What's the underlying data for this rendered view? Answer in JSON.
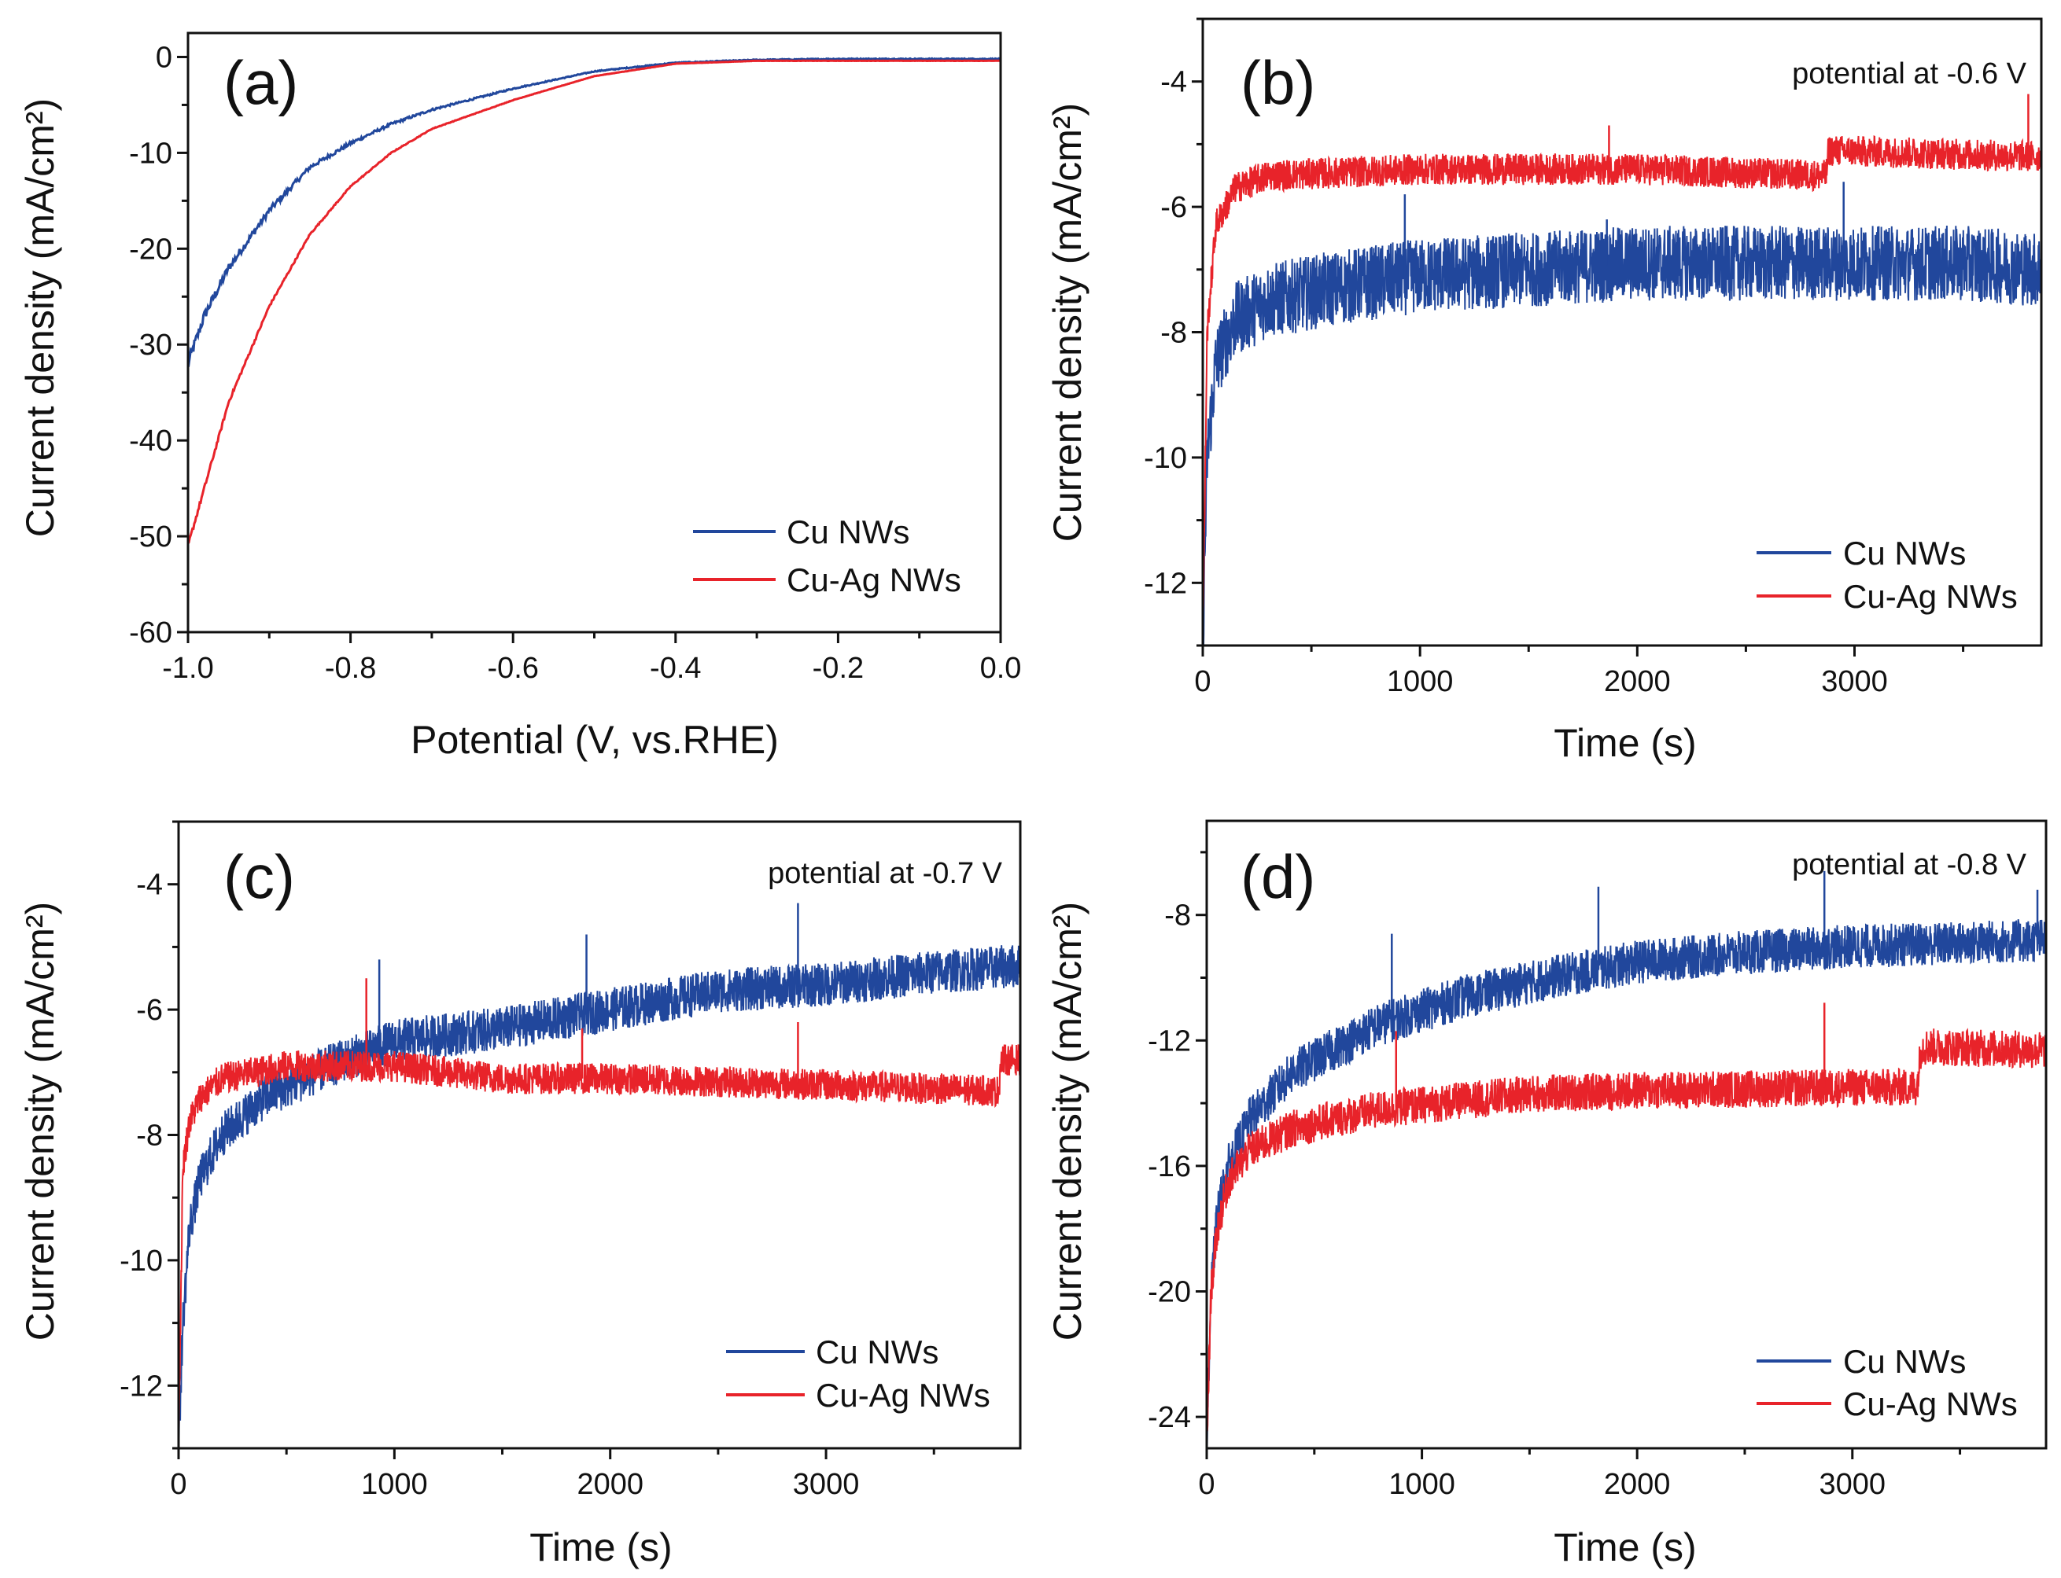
{
  "colors": {
    "cu": "#21479c",
    "cuag": "#e8232a",
    "axis": "#111111"
  },
  "legend": [
    "Cu NWs",
    "Cu-Ag NWs"
  ],
  "chart_data": [
    {
      "panel": "(a)",
      "type": "line",
      "xlabel": "Potential (V, vs.RHE)",
      "ylabel": "Current density (mA/cm²)",
      "annotation": "",
      "xlim": [
        -1.0,
        0.0
      ],
      "ylim": [
        -60,
        2.5
      ],
      "xticks": [
        -1.0,
        -0.8,
        -0.6,
        -0.4,
        -0.2,
        0.0
      ],
      "xtick_labels": [
        "-1.0",
        "-0.8",
        "-0.6",
        "-0.4",
        "-0.2",
        "0.0"
      ],
      "xminor": 0.1,
      "yticks": [
        0,
        -10,
        -20,
        -30,
        -40,
        -50,
        -60
      ],
      "ytick_labels": [
        "0",
        "-10",
        "-20",
        "-30",
        "-40",
        "-50",
        "-60"
      ],
      "yminor": 5,
      "series": [
        {
          "name": "Cu NWs",
          "color_key": "cu",
          "noise": 0.5,
          "x": [
            -1.0,
            -0.98,
            -0.95,
            -0.9,
            -0.85,
            -0.8,
            -0.75,
            -0.7,
            -0.6,
            -0.5,
            -0.4,
            -0.3,
            -0.2,
            -0.1,
            0.0
          ],
          "y": [
            -32,
            -27,
            -22,
            -16,
            -11.5,
            -9,
            -7,
            -5.5,
            -3.3,
            -1.5,
            -0.6,
            -0.3,
            -0.2,
            -0.2,
            -0.2
          ],
          "spikes": []
        },
        {
          "name": "Cu-Ag NWs",
          "color_key": "cuag",
          "noise": 0.12,
          "x": [
            -1.0,
            -0.98,
            -0.95,
            -0.9,
            -0.85,
            -0.8,
            -0.75,
            -0.7,
            -0.6,
            -0.5,
            -0.4,
            -0.3,
            -0.2,
            -0.1,
            0.0
          ],
          "y": [
            -51,
            -45,
            -36,
            -26,
            -18.5,
            -13.5,
            -10,
            -7.5,
            -4.5,
            -2,
            -0.7,
            -0.4,
            -0.4,
            -0.4,
            -0.4
          ],
          "spikes": []
        }
      ]
    },
    {
      "panel": "(b)",
      "type": "line",
      "xlabel": "Time (s)",
      "ylabel": "Current density (mA/cm²)",
      "annotation": "potential at -0.6 V",
      "xlim": [
        0,
        3860
      ],
      "ylim": [
        -13,
        -3
      ],
      "xticks": [
        0,
        1000,
        2000,
        3000
      ],
      "xtick_labels": [
        "0",
        "1000",
        "2000",
        "3000"
      ],
      "xminor": 500,
      "yticks": [
        -4,
        -6,
        -8,
        -10,
        -12
      ],
      "ytick_labels": [
        "-4",
        "-6",
        "-8",
        "-10",
        "-12"
      ],
      "yminor": 1,
      "series": [
        {
          "name": "Cu NWs",
          "color_key": "cu",
          "noise": 0.6,
          "x": [
            0,
            20,
            60,
            150,
            300,
            600,
            1000,
            1500,
            2000,
            2500,
            3000,
            3500,
            3860
          ],
          "y": [
            -13,
            -10,
            -8.5,
            -7.8,
            -7.5,
            -7.3,
            -7.1,
            -7.0,
            -6.9,
            -6.9,
            -6.9,
            -6.9,
            -7.0
          ],
          "spikes": [
            [
              930,
              -5.8
            ],
            [
              1860,
              -6.2
            ],
            [
              2950,
              -5.6
            ]
          ]
        },
        {
          "name": "Cu-Ag NWs",
          "color_key": "cuag",
          "noise": 0.25,
          "x": [
            0,
            20,
            60,
            150,
            300,
            1000,
            2000,
            2870,
            2880,
            3860
          ],
          "y": [
            -13,
            -8,
            -6.3,
            -5.7,
            -5.5,
            -5.4,
            -5.4,
            -5.5,
            -5.1,
            -5.2
          ],
          "spikes": [
            [
              1870,
              -4.7
            ],
            [
              3800,
              -4.2
            ]
          ]
        }
      ]
    },
    {
      "panel": "(c)",
      "type": "line",
      "xlabel": "Time (s)",
      "ylabel": "Current density (mA/cm²)",
      "annotation": "potential at -0.7 V",
      "xlim": [
        0,
        3900
      ],
      "ylim": [
        -13,
        -3
      ],
      "xticks": [
        0,
        1000,
        2000,
        3000
      ],
      "xtick_labels": [
        "0",
        "1000",
        "2000",
        "3000"
      ],
      "xminor": 500,
      "yticks": [
        -4,
        -6,
        -8,
        -10,
        -12
      ],
      "ytick_labels": [
        "-4",
        "-6",
        "-8",
        "-10",
        "-12"
      ],
      "yminor": 1,
      "series": [
        {
          "name": "Cu NWs",
          "color_key": "cu",
          "noise": 0.35,
          "x": [
            0,
            20,
            50,
            100,
            200,
            400,
            700,
            1000,
            1500,
            2000,
            2500,
            3000,
            3500,
            3900
          ],
          "y": [
            -13,
            -11,
            -9.5,
            -8.7,
            -8,
            -7.4,
            -6.9,
            -6.5,
            -6.3,
            -6.0,
            -5.7,
            -5.6,
            -5.4,
            -5.3
          ],
          "spikes": [
            [
              930,
              -5.2
            ],
            [
              1890,
              -4.8
            ],
            [
              2870,
              -4.3
            ]
          ]
        },
        {
          "name": "Cu-Ag NWs",
          "color_key": "cuag",
          "noise": 0.25,
          "x": [
            0,
            20,
            50,
            100,
            200,
            500,
            1000,
            1500,
            2000,
            3000,
            3800,
            3810,
            3900
          ],
          "y": [
            -13,
            -8.5,
            -7.8,
            -7.4,
            -7.1,
            -6.9,
            -6.9,
            -7.1,
            -7.1,
            -7.2,
            -7.3,
            -6.8,
            -6.8
          ],
          "spikes": [
            [
              870,
              -5.5
            ],
            [
              1870,
              -6.3
            ],
            [
              2870,
              -6.2
            ]
          ]
        }
      ]
    },
    {
      "panel": "(d)",
      "type": "line",
      "xlabel": "Time (s)",
      "ylabel": "Current density (mA/cm²)",
      "annotation": "potential at -0.8 V",
      "xlim": [
        0,
        3900
      ],
      "ylim": [
        -25,
        -5
      ],
      "xticks": [
        0,
        1000,
        2000,
        3000
      ],
      "xtick_labels": [
        "0",
        "1000",
        "2000",
        "3000"
      ],
      "xminor": 500,
      "yticks": [
        -8,
        -12,
        -16,
        -20,
        -24
      ],
      "ytick_labels": [
        "-8",
        "-12",
        "-16",
        "-20",
        "-24"
      ],
      "yminor": 2,
      "series": [
        {
          "name": "Cu NWs",
          "color_key": "cu",
          "noise": 0.7,
          "x": [
            0,
            20,
            50,
            100,
            200,
            400,
            800,
            1200,
            1600,
            2000,
            2500,
            3000,
            3500,
            3900
          ],
          "y": [
            -25,
            -20,
            -17.5,
            -16,
            -14.5,
            -13,
            -11.5,
            -10.6,
            -10,
            -9.5,
            -9.2,
            -9,
            -8.9,
            -8.8
          ],
          "spikes": [
            [
              860,
              -8.6
            ],
            [
              1820,
              -7.1
            ],
            [
              2870,
              -6.6
            ],
            [
              3860,
              -7.2
            ]
          ]
        },
        {
          "name": "Cu-Ag NWs",
          "color_key": "cuag",
          "noise": 0.6,
          "x": [
            0,
            20,
            50,
            100,
            200,
            400,
            800,
            1500,
            2000,
            3000,
            3300,
            3320,
            3900
          ],
          "y": [
            -25,
            -20,
            -18,
            -16.5,
            -15.5,
            -14.8,
            -14.2,
            -13.7,
            -13.6,
            -13.5,
            -13.5,
            -12.2,
            -12.3
          ],
          "spikes": [
            [
              880,
              -11.7
            ],
            [
              2870,
              -10.8
            ]
          ]
        }
      ]
    }
  ]
}
